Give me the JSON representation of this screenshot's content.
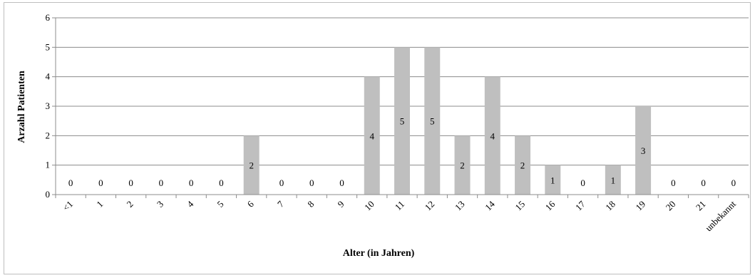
{
  "chart_data": {
    "type": "bar",
    "xlabel": "Alter (in Jahren)",
    "ylabel": "Arzahl  Patienten",
    "ylim": [
      0,
      6
    ],
    "yticks": [
      "0",
      "1",
      "2",
      "3",
      "4",
      "5",
      "6"
    ],
    "grid": true,
    "legend": "none",
    "bar_color": "#bfbfbf",
    "grid_color": "#8c8c8c",
    "categories": [
      "<1",
      "1",
      "2",
      "3",
      "4",
      "5",
      "6",
      "7",
      "8",
      "9",
      "10",
      "11",
      "12",
      "13",
      "14",
      "15",
      "16",
      "17",
      "18",
      "19",
      "20",
      "21",
      "unbekannt"
    ],
    "values": [
      0,
      0,
      0,
      0,
      0,
      0,
      2,
      0,
      0,
      0,
      4,
      5,
      5,
      2,
      4,
      2,
      1,
      0,
      1,
      3,
      0,
      0,
      0
    ],
    "data_labels": [
      "0",
      "0",
      "0",
      "0",
      "0",
      "0",
      "2",
      "0",
      "0",
      "0",
      "4",
      "5",
      "5",
      "2",
      "4",
      "2",
      "1",
      "0",
      "1",
      "3",
      "0",
      "0",
      "0"
    ]
  }
}
